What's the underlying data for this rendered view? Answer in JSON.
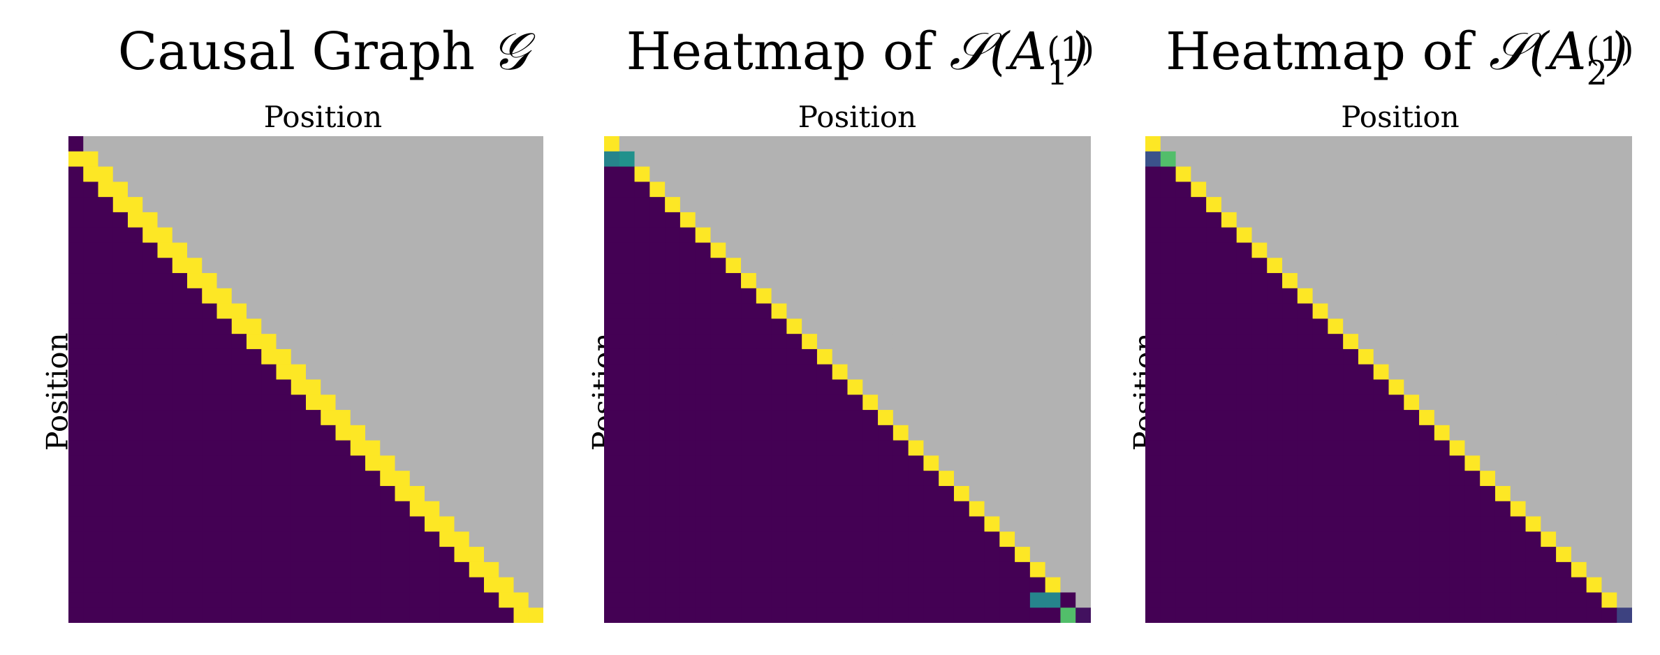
{
  "chart_data": [
    {
      "type": "heatmap",
      "title": "Causal Graph 𝒢",
      "title_parts": {
        "text": "Causal Graph ",
        "math": "𝒢",
        "sub": "",
        "sup": ""
      },
      "xlabel": "Position",
      "ylabel": "Position",
      "size": 32,
      "masked_region": "upper triangle (col > row) shown gray",
      "colors": {
        "low": "#440154",
        "high": "#fde725",
        "mask": "#b2b2b2"
      },
      "cells": [
        {
          "pattern": "row == col",
          "rows": [
            0
          ],
          "value": 0.0
        },
        {
          "pattern": "col == row - 1 and col == row",
          "rows": "1..31",
          "value": 1.0
        }
      ],
      "diagonal_value": 1.0,
      "subdiagonal_value": 1.0,
      "first_diagonal_value": 0.0,
      "lower_value": 0.0
    },
    {
      "type": "heatmap",
      "title": "Heatmap of 𝒮(A_1^(1))",
      "title_parts": {
        "text": "Heatmap of ",
        "math": "𝒮(A",
        "sub": "1",
        "sup": "(1)",
        "close": ")"
      },
      "xlabel": "Position",
      "ylabel": "Position",
      "size": 32,
      "masked_region": "upper triangle (col > row) shown gray",
      "colors": {
        "low": "#440154",
        "high": "#fde725",
        "mask": "#b2b2b2",
        "mid_teal": "#21918c",
        "mid_green": "#5ec962"
      },
      "diagonal_value": 1.0,
      "lower_value": 0.0,
      "special_cells": [
        {
          "row": 1,
          "col": 0,
          "value": 0.45
        },
        {
          "row": 1,
          "col": 1,
          "value": 0.5
        },
        {
          "row": 30,
          "col": 28,
          "value": 0.45
        },
        {
          "row": 30,
          "col": 29,
          "value": 0.45
        },
        {
          "row": 30,
          "col": 30,
          "value": 0.0
        },
        {
          "row": 31,
          "col": 30,
          "value": 0.7
        },
        {
          "row": 31,
          "col": 31,
          "value": 0.05
        }
      ]
    },
    {
      "type": "heatmap",
      "title": "Heatmap of 𝒮(A_2^(1))",
      "title_parts": {
        "text": "Heatmap of ",
        "math": "𝒮(A",
        "sub": "2",
        "sup": "(1)",
        "close": ")"
      },
      "xlabel": "Position",
      "ylabel": "Position",
      "size": 32,
      "masked_region": "upper triangle (col > row) shown gray",
      "colors": {
        "low": "#440154",
        "high": "#fde725",
        "mask": "#b2b2b2",
        "mid_green": "#5ec962",
        "mid_blue": "#3b528b"
      },
      "diagonal_value": 1.0,
      "lower_value": 0.0,
      "special_cells": [
        {
          "row": 1,
          "col": 0,
          "value": 0.25
        },
        {
          "row": 1,
          "col": 1,
          "value": 0.7
        },
        {
          "row": 31,
          "col": 31,
          "value": 0.2
        }
      ]
    }
  ]
}
